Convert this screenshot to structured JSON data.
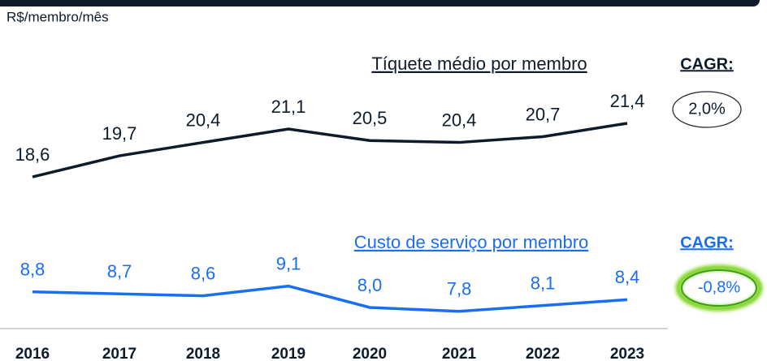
{
  "chart_data": {
    "type": "line",
    "unit_label": "R$/membro/mês",
    "categories": [
      "2016",
      "2017",
      "2018",
      "2019",
      "2020",
      "2021",
      "2022",
      "2023"
    ],
    "series": [
      {
        "name": "Tíquete médio por membro",
        "color": "#0d1b2a",
        "values": [
          18.6,
          19.7,
          20.4,
          21.1,
          20.5,
          20.4,
          20.7,
          21.4
        ],
        "value_labels": [
          "18,6",
          "19,7",
          "20,4",
          "21,1",
          "20,5",
          "20,4",
          "20,7",
          "21,4"
        ],
        "cagr_label": "CAGR:",
        "cagr": "2,0%"
      },
      {
        "name": "Custo de serviço por membro",
        "color": "#1a6ef5",
        "values": [
          8.8,
          8.7,
          8.6,
          9.1,
          8.0,
          7.8,
          8.1,
          8.4
        ],
        "value_labels": [
          "8,8",
          "8,7",
          "8,6",
          "9,1",
          "8,0",
          "7,8",
          "8,1",
          "8,4"
        ],
        "cagr_label": "CAGR:",
        "cagr": "-0,8%"
      }
    ]
  }
}
